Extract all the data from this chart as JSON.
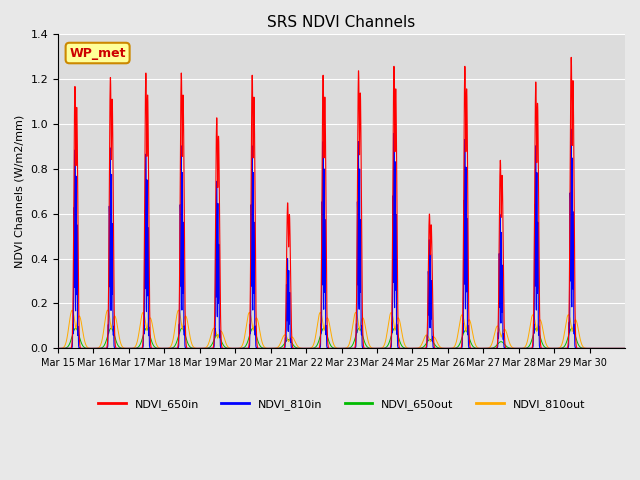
{
  "title": "SRS NDVI Channels",
  "ylabel": "NDVI Channels (W/m2/mm)",
  "xlabel": "",
  "annotation": "WP_met",
  "ylim": [
    0,
    1.4
  ],
  "background_color": "#e8e8e8",
  "plot_bg_color": "#dcdcdc",
  "series": {
    "NDVI_650in": {
      "color": "#ff0000",
      "label": "NDVI_650in"
    },
    "NDVI_810in": {
      "color": "#0000ff",
      "label": "NDVI_810in"
    },
    "NDVI_650out": {
      "color": "#00bb00",
      "label": "NDVI_650out"
    },
    "NDVI_810out": {
      "color": "#ffaa00",
      "label": "NDVI_810out"
    }
  },
  "xtick_labels": [
    "Mar 15",
    "Mar 16",
    "Mar 17",
    "Mar 18",
    "Mar 19",
    "Mar 20",
    "Mar 21",
    "Mar 22",
    "Mar 23",
    "Mar 24",
    "Mar 25",
    "Mar 26",
    "Mar 27",
    "Mar 28",
    "Mar 29",
    "Mar 30"
  ],
  "ytick_vals": [
    0.0,
    0.2,
    0.4,
    0.6,
    0.8,
    1.0,
    1.2,
    1.4
  ],
  "n_days": 16,
  "peaks_650in": [
    1.17,
    1.21,
    1.23,
    1.23,
    1.03,
    1.22,
    0.65,
    1.22,
    1.24,
    1.26,
    0.6,
    1.26,
    0.84,
    1.19,
    1.3,
    0.0
  ],
  "peaks_810in": [
    0.95,
    0.96,
    0.93,
    0.97,
    0.8,
    0.97,
    0.43,
    0.99,
    0.99,
    1.03,
    0.52,
    1.0,
    0.64,
    0.97,
    1.05,
    0.0
  ],
  "peaks_650out": [
    0.09,
    0.09,
    0.09,
    0.09,
    0.06,
    0.09,
    0.04,
    0.09,
    0.09,
    0.09,
    0.04,
    0.08,
    0.03,
    0.09,
    0.09,
    0.0
  ],
  "peaks_810out": [
    0.17,
    0.17,
    0.16,
    0.17,
    0.09,
    0.16,
    0.06,
    0.16,
    0.16,
    0.16,
    0.06,
    0.15,
    0.1,
    0.15,
    0.15,
    0.0
  ],
  "figsize": [
    6.4,
    4.8
  ],
  "dpi": 100
}
